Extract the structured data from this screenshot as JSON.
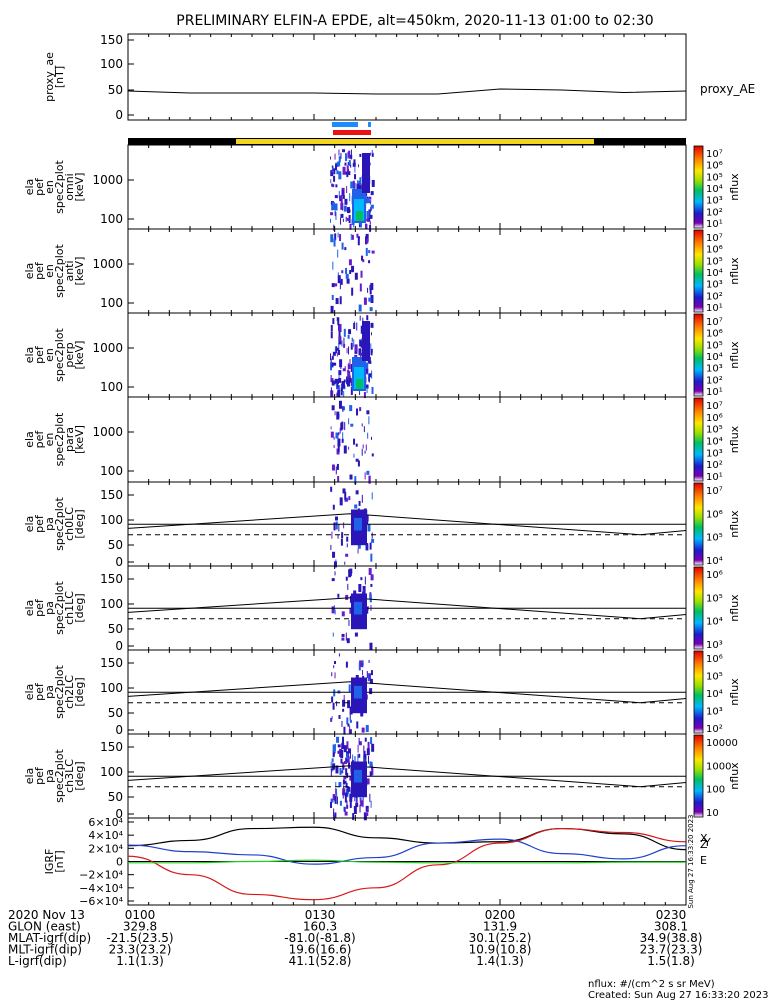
{
  "title": "PRELIMINARY ELFIN-A EPDE, alt=450km, 2020-11-13 01:00 to 02:30",
  "colors": {
    "ae_line": "#000000",
    "bar_dark": "#000000",
    "bar_yellow": "#f4d41c",
    "mark_blue": "#1a8cff",
    "mark_red": "#ee1111",
    "grf_x": "#000000",
    "grf_y": "#1f3fd0",
    "grf_z": "#d81818",
    "grf_e": "#22cc22"
  },
  "panels": [
    {
      "id": "proxy_ae",
      "ylabel": [
        "proxy_ae",
        "[nT]"
      ],
      "ticks": [
        "150",
        "100",
        "50",
        "0"
      ],
      "right_label": "proxy_AE"
    },
    {
      "id": "omni",
      "ylabel": [
        "ela",
        "pef",
        "en",
        "spec2plot",
        "omni",
        "[keV]"
      ],
      "ticks": [
        "1000",
        "100"
      ],
      "cbar_ticks": [
        "10⁷",
        "10⁶",
        "10⁵",
        "10⁴",
        "10³",
        "10²",
        "10¹"
      ],
      "cbar_label": "nflux"
    },
    {
      "id": "anti",
      "ylabel": [
        "ela",
        "pef",
        "en",
        "spec2plot",
        "anti",
        "[keV]"
      ],
      "ticks": [
        "1000",
        "100"
      ],
      "cbar_ticks": [
        "10⁷",
        "10⁶",
        "10⁵",
        "10⁴",
        "10³",
        "10²",
        "10¹"
      ],
      "cbar_label": "nflux"
    },
    {
      "id": "perp",
      "ylabel": [
        "ela",
        "pef",
        "en",
        "spec2plot",
        "perp",
        "[keV]"
      ],
      "ticks": [
        "1000",
        "100"
      ],
      "cbar_ticks": [
        "10⁷",
        "10⁶",
        "10⁵",
        "10⁴",
        "10³",
        "10²",
        "10¹"
      ],
      "cbar_label": "nflux"
    },
    {
      "id": "para",
      "ylabel": [
        "ela",
        "pef",
        "en",
        "spec2plot",
        "para",
        "[keV]"
      ],
      "ticks": [
        "1000",
        "100"
      ],
      "cbar_ticks": [
        "10⁷",
        "10⁶",
        "10⁵",
        "10⁴",
        "10³",
        "10²",
        "10¹"
      ],
      "cbar_label": "nflux"
    },
    {
      "id": "ch0LC",
      "ylabel": [
        "ela",
        "pef",
        "pa",
        "spec2plot",
        "ch0LC",
        "[deg]"
      ],
      "ticks": [
        "150",
        "100",
        "50",
        "0"
      ],
      "cbar_ticks": [
        "10⁷",
        "10⁶",
        "10⁵",
        "10⁴"
      ],
      "cbar_label": "nflux"
    },
    {
      "id": "ch1LC",
      "ylabel": [
        "ela",
        "pef",
        "pa",
        "spec2plot",
        "ch1LC",
        "[deg]"
      ],
      "ticks": [
        "150",
        "100",
        "50",
        "0"
      ],
      "cbar_ticks": [
        "10⁶",
        "10⁵",
        "10⁴",
        "10³"
      ],
      "cbar_label": "nflux"
    },
    {
      "id": "ch2LC",
      "ylabel": [
        "ela",
        "pef",
        "pa",
        "spec2plot",
        "ch2LC",
        "[deg]"
      ],
      "ticks": [
        "150",
        "100",
        "50",
        "0"
      ],
      "cbar_ticks": [
        "10⁶",
        "10⁵",
        "10⁴",
        "10³",
        "10²"
      ],
      "cbar_label": "nflux"
    },
    {
      "id": "ch3LC",
      "ylabel": [
        "ela",
        "pef",
        "pa",
        "spec2plot",
        "ch3LC",
        "[deg]"
      ],
      "ticks": [
        "150",
        "100",
        "50",
        "0"
      ],
      "cbar_ticks": [
        "10000",
        "1000",
        "100",
        "10"
      ],
      "cbar_label": "nflux"
    },
    {
      "id": "igrf",
      "ylabel": [
        "IGRF",
        "[nT]"
      ],
      "ticks": [
        "6×10⁴",
        "4×10⁴",
        "2×10⁴",
        "0",
        "−2×10⁴",
        "−4×10⁴",
        "−6×10⁴"
      ],
      "legend": [
        "X",
        "Y",
        "Z",
        "E"
      ]
    }
  ],
  "footer": {
    "rows": [
      [
        "2020 Nov 13",
        "0100",
        "0130",
        "0200",
        "0230"
      ],
      [
        "GLON (east)",
        "329.8",
        "160.3",
        "131.9",
        "308.1"
      ],
      [
        "MLAT-igrf(dip)",
        "-21.5(23.5)",
        "-81.0(-81.8)",
        "30.1(25.2)",
        "34.9(38.8)"
      ],
      [
        "MLT-igrf(dip)",
        "23.3(23.2)",
        "19.6(16.6)",
        "10.9(10.8)",
        "23.7(23.3)"
      ],
      [
        "L-igrf(dip)",
        "1.1(1.3)",
        "41.1(52.8)",
        "1.4(1.3)",
        "1.5(1.8)"
      ]
    ],
    "units": "nflux: #/(cm^2 s sr MeV)",
    "created": "Created: Sun Aug 27 16:33:20 2023",
    "stamp": "Sun Aug 27 16:33:20 2023"
  },
  "chart_data": {
    "type": "line",
    "title": "PRELIMINARY ELFIN-A EPDE, alt=450km, 2020-11-13 01:00 to 02:30",
    "xlabel": "",
    "x_ticks": [
      "0100",
      "0130",
      "0200",
      "0230"
    ],
    "x": [
      "0100",
      "0110",
      "0120",
      "0130",
      "0140",
      "0150",
      "0200",
      "0210",
      "0220",
      "0230"
    ],
    "series": [
      {
        "name": "proxy_AE",
        "values": [
          48,
          44,
          44,
          44,
          42,
          42,
          52,
          50,
          45,
          48
        ],
        "ylim": [
          0,
          150
        ]
      },
      {
        "name": "X",
        "values": [
          24000,
          32000,
          50000,
          52000,
          36000,
          28000,
          30000,
          50000,
          42000,
          18000
        ],
        "ylim": [
          -60000,
          60000
        ]
      },
      {
        "name": "Y",
        "values": [
          25000,
          15000,
          10000,
          -4000,
          6000,
          28000,
          34000,
          12000,
          4000,
          24000
        ],
        "ylim": [
          -60000,
          60000
        ]
      },
      {
        "name": "Z",
        "values": [
          8000,
          -20000,
          -50000,
          -58000,
          -40000,
          -5000,
          28000,
          50000,
          44000,
          30000
        ],
        "ylim": [
          -60000,
          60000
        ]
      },
      {
        "name": "E",
        "values": [
          -2000,
          -2000,
          0,
          2000,
          -1000,
          -2000,
          -2000,
          -2000,
          -1000,
          -1000
        ],
        "ylim": [
          -60000,
          60000
        ]
      }
    ]
  }
}
